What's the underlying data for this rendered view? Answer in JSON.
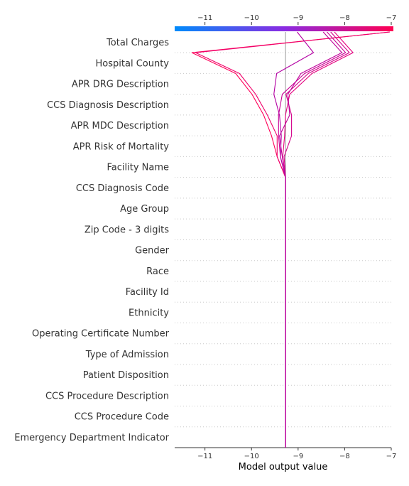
{
  "chart_data": {
    "type": "line",
    "subtype": "shap-decision-plot",
    "xlabel": "Model output value",
    "xlim": [
      -11.65,
      -7.0
    ],
    "x_ticks": [
      -11,
      -10,
      -9,
      -8,
      -7
    ],
    "x_tick_labels": [
      "−11",
      "−10",
      "−9",
      "−8",
      "−7"
    ],
    "base_value": -9.27,
    "features": [
      "Total Charges",
      "Hospital County",
      "APR DRG Description",
      "CCS Diagnosis Description",
      "APR MDC Description",
      "APR Risk of Mortality",
      "Facility Name",
      "CCS Diagnosis Code",
      "Age Group",
      "Zip Code - 3 digits",
      "Gender",
      "Race",
      "Facility Id",
      "Ethnicity",
      "Operating Certificate Number",
      "Type of Admission",
      "Patient Disposition",
      "CCS Procedure Description",
      "CCS Procedure Code",
      "Emergency Department Indicator"
    ],
    "colorbar": {
      "colors": [
        "#008bfb",
        "#8a2be2",
        "#ff0052"
      ],
      "ticks": [
        -11,
        -10,
        -9,
        -8,
        -7
      ]
    },
    "grid": "dotted-horizontal",
    "series": [
      {
        "color": "#ff0058",
        "values": [
          -7.03,
          -11.28,
          -10.34,
          -9.99,
          -9.74,
          -9.57,
          -9.45,
          -9.27,
          -9.27,
          -9.27,
          -9.27,
          -9.27,
          -9.27,
          -9.27,
          -9.27,
          -9.27,
          -9.27,
          -9.27,
          -9.27,
          -9.27,
          -9.27
        ]
      },
      {
        "color": "#f0006a",
        "values": [
          -7.03,
          -11.2,
          -10.26,
          -9.91,
          -9.66,
          -9.45,
          -9.45,
          -9.27,
          -9.27,
          -9.27,
          -9.27,
          -9.27,
          -9.27,
          -9.27,
          -9.27,
          -9.27,
          -9.27,
          -9.27,
          -9.27,
          -9.27,
          -9.27
        ]
      },
      {
        "color": "#e5007e",
        "values": [
          -8.22,
          -7.82,
          -8.7,
          -9.18,
          -9.27,
          -9.29,
          -9.33,
          -9.27,
          -9.27,
          -9.27,
          -9.27,
          -9.27,
          -9.27,
          -9.27,
          -9.27,
          -9.27,
          -9.27,
          -9.27,
          -9.27,
          -9.27,
          -9.27
        ]
      },
      {
        "color": "#d4008a",
        "values": [
          -8.3,
          -7.9,
          -8.78,
          -9.26,
          -9.14,
          -9.14,
          -9.3,
          -9.27,
          -9.27,
          -9.27,
          -9.27,
          -9.27,
          -9.27,
          -9.27,
          -9.27,
          -9.27,
          -9.27,
          -9.27,
          -9.27,
          -9.27,
          -9.27
        ]
      },
      {
        "color": "#c80094",
        "values": [
          -8.38,
          -7.98,
          -8.86,
          -9.34,
          -9.42,
          -9.42,
          -9.38,
          -9.27,
          -9.27,
          -9.27,
          -9.27,
          -9.27,
          -9.27,
          -9.27,
          -9.27,
          -9.27,
          -9.27,
          -9.27,
          -9.27,
          -9.27,
          -9.27
        ]
      },
      {
        "color": "#bf009a",
        "values": [
          -8.46,
          -8.06,
          -8.94,
          -9.22,
          -9.18,
          -9.4,
          -9.34,
          -9.27,
          -9.27,
          -9.27,
          -9.27,
          -9.27,
          -9.27,
          -9.27,
          -9.27,
          -9.27,
          -9.27,
          -9.27,
          -9.27,
          -9.27,
          -9.27
        ]
      },
      {
        "color": "#b300a3",
        "values": [
          -9.02,
          -8.67,
          -9.46,
          -9.52,
          -9.4,
          -9.36,
          -9.38,
          -9.27,
          -9.27,
          -9.27,
          -9.27,
          -9.27,
          -9.27,
          -9.27,
          -9.27,
          -9.27,
          -9.27,
          -9.27,
          -9.27,
          -9.27,
          -9.27
        ]
      }
    ]
  }
}
